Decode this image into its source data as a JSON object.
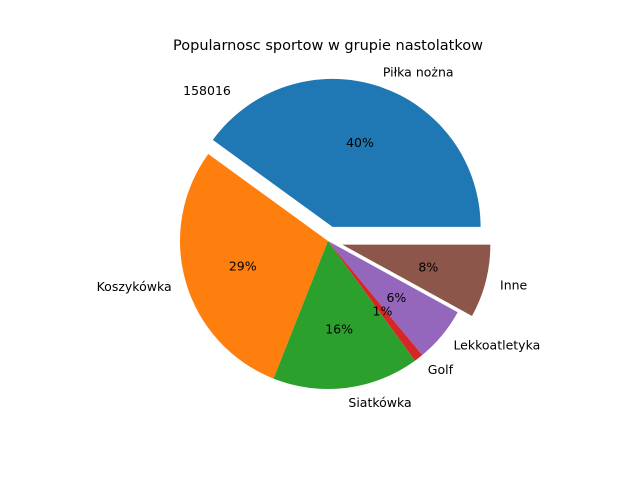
{
  "chart_data": {
    "type": "pie",
    "title": "Popularnosc sportow w grupie nastolatkow",
    "annotation": "158016",
    "categories": [
      "Piłka nożna",
      "Koszykówka",
      "Siatkówka",
      "Golf",
      "Lekkoatletyka",
      "Inne"
    ],
    "values": [
      40,
      29,
      16,
      1,
      6,
      8
    ],
    "value_labels": [
      "40%",
      "29%",
      "16%",
      "1%",
      "6%",
      "8%"
    ],
    "colors": [
      "#1f77b4",
      "#ff7f0e",
      "#2ca02c",
      "#d62728",
      "#9467bd",
      "#8c564b"
    ],
    "exploded": [
      "Piłka nożna",
      "Inne"
    ]
  }
}
